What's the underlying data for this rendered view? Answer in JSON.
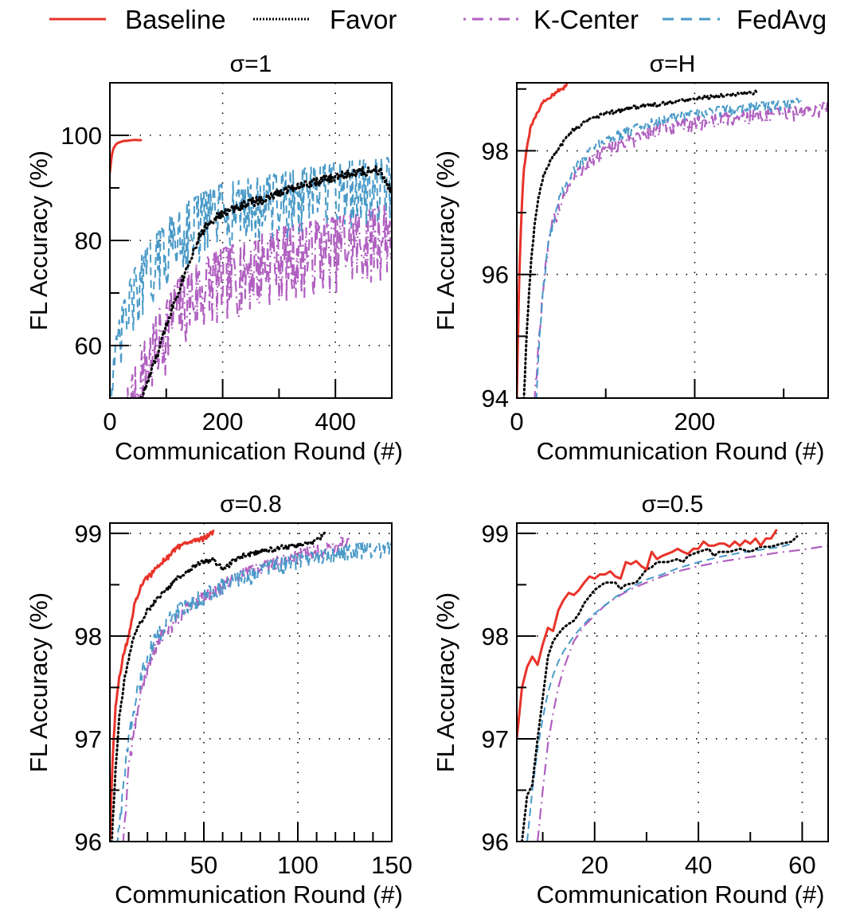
{
  "figure": {
    "legend": [
      {
        "name": "Baseline",
        "color": "#e8332a",
        "style": "solid"
      },
      {
        "name": "Favor",
        "color": "#000000",
        "style": "dotted"
      },
      {
        "name": "K-Center",
        "color": "#b060c0",
        "style": "dashdot"
      },
      {
        "name": "FedAvg",
        "color": "#4a9ac8",
        "style": "dashed"
      }
    ]
  },
  "chart_data": [
    {
      "type": "line",
      "title": "σ=1",
      "xlabel": "Communication Round (#)",
      "ylabel": "FL Accuracy (%)",
      "xlim": [
        0,
        500
      ],
      "ylim": [
        50,
        110
      ],
      "xticks": [
        0,
        200,
        400
      ],
      "xtick_labels": [
        "0",
        "200",
        "400"
      ],
      "xminor": [
        100,
        300
      ],
      "yticks": [
        60,
        80,
        100
      ],
      "ytick_labels": [
        "60",
        "80",
        "100"
      ],
      "yminor": [
        70,
        90
      ],
      "grid": true,
      "noise": {
        "Baseline": 0.1,
        "Favor": 1.5,
        "K-Center": 9,
        "FedAvg": 8
      },
      "series": [
        {
          "name": "Baseline",
          "x": [
            0,
            3,
            6,
            10,
            15,
            20,
            30,
            40,
            55
          ],
          "y": [
            93,
            96,
            97.5,
            98.2,
            98.6,
            98.8,
            99,
            99.1,
            99.1
          ]
        },
        {
          "name": "Favor",
          "x": [
            50,
            60,
            70,
            80,
            90,
            100,
            120,
            140,
            160,
            180,
            200,
            240,
            280,
            320,
            360,
            400,
            440,
            480,
            500
          ],
          "y": [
            48,
            51,
            54,
            57,
            60,
            64,
            70,
            76,
            81,
            84,
            85,
            87,
            88,
            90,
            91,
            92,
            93,
            93.5,
            89
          ]
        },
        {
          "name": "K-Center",
          "x": [
            0,
            30,
            60,
            90,
            120,
            150,
            200,
            250,
            300,
            350,
            400,
            450,
            500
          ],
          "y": [
            40,
            46,
            55,
            62,
            67,
            70,
            73,
            75,
            77,
            78,
            79,
            80,
            82
          ]
        },
        {
          "name": "FedAvg",
          "x": [
            0,
            20,
            40,
            60,
            80,
            100,
            130,
            160,
            200,
            250,
            300,
            350,
            400,
            450,
            500
          ],
          "y": [
            50,
            62,
            69,
            73,
            76,
            79,
            82,
            84,
            86,
            87,
            88,
            89,
            90,
            90.5,
            91
          ]
        }
      ]
    },
    {
      "type": "line",
      "title": "σ=H",
      "xlabel": "Communication Round (#)",
      "ylabel": "FL Accuracy (%)",
      "xlim": [
        0,
        350
      ],
      "ylim": [
        94,
        99.1
      ],
      "xticks": [
        0,
        200
      ],
      "xtick_labels": [
        "0",
        "200"
      ],
      "xminor": [
        100,
        300
      ],
      "yticks": [
        94,
        96,
        98
      ],
      "ytick_labels": [
        "94",
        "96",
        "98"
      ],
      "yminor": [
        95,
        97,
        99
      ],
      "grid": true,
      "noise": {
        "Baseline": 0.05,
        "Favor": 0.05,
        "K-Center": 0.15,
        "FedAvg": 0.1
      },
      "series": [
        {
          "name": "Baseline",
          "x": [
            0,
            2,
            4,
            6,
            8,
            12,
            16,
            22,
            30,
            40,
            50,
            56
          ],
          "y": [
            94,
            95.5,
            96.5,
            97.2,
            97.7,
            98.1,
            98.4,
            98.6,
            98.8,
            98.9,
            99.0,
            99.05
          ]
        },
        {
          "name": "Favor",
          "x": [
            8,
            12,
            16,
            20,
            25,
            30,
            40,
            50,
            60,
            80,
            100,
            130,
            160,
            200,
            240,
            270
          ],
          "y": [
            94,
            95.3,
            96.2,
            96.8,
            97.3,
            97.6,
            97.9,
            98.1,
            98.3,
            98.5,
            98.6,
            98.7,
            98.75,
            98.85,
            98.9,
            98.95
          ]
        },
        {
          "name": "K-Center",
          "x": [
            20,
            25,
            30,
            35,
            40,
            50,
            60,
            80,
            100,
            130,
            160,
            200,
            250,
            300,
            350
          ],
          "y": [
            94,
            95.0,
            95.8,
            96.4,
            96.8,
            97.2,
            97.5,
            97.8,
            98.0,
            98.2,
            98.35,
            98.45,
            98.55,
            98.6,
            98.7
          ]
        },
        {
          "name": "FedAvg",
          "x": [
            22,
            27,
            32,
            38,
            45,
            55,
            70,
            90,
            120,
            160,
            200,
            250,
            300,
            320
          ],
          "y": [
            94,
            95.3,
            96.1,
            96.7,
            97.1,
            97.5,
            97.8,
            98.1,
            98.3,
            98.5,
            98.6,
            98.7,
            98.75,
            98.8
          ]
        }
      ]
    },
    {
      "type": "line",
      "title": "σ=0.8",
      "xlabel": "Communication Round (#)",
      "ylabel": "FL Accuracy (%)",
      "xlim": [
        0,
        150
      ],
      "ylim": [
        96,
        99.1
      ],
      "xticks": [
        50,
        100,
        150
      ],
      "xtick_labels": [
        "50",
        "100",
        "150"
      ],
      "xminor": [
        10,
        20,
        30,
        40,
        60,
        70,
        80,
        90,
        110,
        120,
        130,
        140
      ],
      "yticks": [
        96,
        97,
        98,
        99
      ],
      "ytick_labels": [
        "96",
        "97",
        "98",
        "99"
      ],
      "yminor": [
        96.5,
        97.5,
        98.5
      ],
      "grid": true,
      "noise": {
        "Baseline": 0.04,
        "Favor": 0.04,
        "K-Center": 0.08,
        "FedAvg": 0.1
      },
      "series": [
        {
          "name": "Baseline",
          "x": [
            0,
            1,
            2,
            3,
            5,
            7,
            10,
            13,
            15,
            18,
            22,
            26,
            30,
            35,
            40,
            45,
            50,
            55
          ],
          "y": [
            96,
            96.6,
            97.0,
            97.3,
            97.6,
            97.8,
            98.0,
            98.3,
            98.4,
            98.55,
            98.6,
            98.7,
            98.75,
            98.85,
            98.9,
            98.92,
            98.95,
            99.02
          ]
        },
        {
          "name": "Favor",
          "x": [
            1,
            3,
            5,
            8,
            12,
            15,
            20,
            25,
            30,
            35,
            40,
            45,
            50,
            55,
            60,
            70,
            80,
            90,
            100,
            110,
            115
          ],
          "y": [
            96,
            96.7,
            97.2,
            97.6,
            97.95,
            98.1,
            98.25,
            98.35,
            98.45,
            98.55,
            98.6,
            98.68,
            98.72,
            98.75,
            98.65,
            98.78,
            98.82,
            98.86,
            98.88,
            98.93,
            99.0
          ]
        },
        {
          "name": "K-Center",
          "x": [
            7,
            10,
            13,
            17,
            22,
            27,
            35,
            45,
            55,
            70,
            85,
            100,
            115,
            128
          ],
          "y": [
            96,
            96.7,
            97.1,
            97.5,
            97.8,
            98.0,
            98.15,
            98.35,
            98.45,
            98.6,
            98.7,
            98.8,
            98.85,
            98.95
          ]
        },
        {
          "name": "FedAvg",
          "x": [
            4,
            7,
            10,
            14,
            18,
            22,
            27,
            33,
            40,
            50,
            60,
            75,
            90,
            105,
            120,
            135,
            150
          ],
          "y": [
            96,
            96.5,
            97.0,
            97.4,
            97.7,
            97.9,
            98.05,
            98.2,
            98.3,
            98.4,
            98.5,
            98.6,
            98.7,
            98.75,
            98.8,
            98.85,
            98.85
          ]
        }
      ]
    },
    {
      "type": "line",
      "title": "σ=0.5",
      "xlabel": "Communication Round (#)",
      "ylabel": "FL Accuracy (%)",
      "xlim": [
        5,
        65
      ],
      "ylim": [
        96,
        99.1
      ],
      "xticks": [
        20,
        40,
        60
      ],
      "xtick_labels": [
        "20",
        "40",
        "60"
      ],
      "xminor": [
        10,
        30,
        50
      ],
      "yticks": [
        96,
        97,
        98,
        99
      ],
      "ytick_labels": [
        "96",
        "97",
        "98",
        "99"
      ],
      "yminor": [
        96.5,
        97.5,
        98.5
      ],
      "grid": true,
      "noise": {
        "Baseline": 0.0,
        "Favor": 0.0,
        "K-Center": 0.0,
        "FedAvg": 0.0
      },
      "series": [
        {
          "name": "Baseline",
          "x": [
            5,
            6,
            7,
            8,
            9,
            10,
            11,
            12,
            13,
            14,
            15,
            16,
            17,
            18,
            19,
            20,
            21,
            22,
            23,
            24,
            25,
            26,
            27,
            28,
            29,
            30,
            31,
            32,
            33,
            34,
            35,
            36,
            37,
            38,
            39,
            40,
            41,
            42,
            43,
            44,
            45,
            46,
            47,
            48,
            49,
            50,
            51,
            52,
            53,
            54,
            55
          ],
          "y": [
            97.0,
            97.5,
            97.7,
            97.8,
            97.72,
            97.92,
            98.08,
            98.05,
            98.25,
            98.35,
            98.42,
            98.4,
            98.45,
            98.52,
            98.58,
            98.56,
            98.6,
            98.6,
            98.63,
            98.58,
            98.56,
            98.72,
            98.7,
            98.73,
            98.68,
            98.65,
            98.82,
            98.75,
            98.78,
            98.8,
            98.82,
            98.85,
            98.82,
            98.8,
            98.85,
            98.85,
            98.92,
            98.88,
            98.88,
            98.9,
            98.9,
            98.87,
            98.92,
            98.88,
            98.93,
            98.9,
            98.95,
            98.88,
            98.95,
            98.95,
            99.03
          ]
        },
        {
          "name": "Favor",
          "x": [
            6,
            7,
            8,
            9,
            10,
            11,
            12,
            13,
            14,
            15,
            16,
            17,
            18,
            20,
            22,
            24,
            25,
            26,
            28,
            30,
            31,
            32,
            34,
            36,
            37,
            38,
            40,
            42,
            43,
            44,
            46,
            48,
            50,
            52,
            54,
            56,
            58,
            59
          ],
          "y": [
            96.0,
            96.45,
            96.55,
            97.0,
            97.4,
            97.8,
            97.95,
            98.02,
            98.08,
            98.12,
            98.15,
            98.22,
            98.32,
            98.45,
            98.52,
            98.52,
            98.46,
            98.5,
            98.52,
            98.65,
            98.67,
            98.72,
            98.72,
            98.75,
            98.72,
            98.78,
            98.82,
            98.85,
            98.78,
            98.82,
            98.82,
            98.85,
            98.82,
            98.87,
            98.87,
            98.9,
            98.92,
            98.97
          ]
        },
        {
          "name": "FedAvg",
          "x": [
            7,
            8,
            9,
            10,
            11,
            12,
            13,
            14,
            16,
            18,
            20,
            22,
            24,
            26,
            28,
            30,
            33,
            36,
            40,
            44,
            48,
            52,
            56,
            58
          ],
          "y": [
            96.0,
            96.5,
            96.9,
            97.2,
            97.45,
            97.62,
            97.75,
            97.85,
            98.0,
            98.12,
            98.22,
            98.3,
            98.38,
            98.44,
            98.5,
            98.55,
            98.6,
            98.66,
            98.72,
            98.77,
            98.81,
            98.84,
            98.87,
            98.9
          ]
        },
        {
          "name": "K-Center",
          "x": [
            9,
            10,
            11,
            12,
            13,
            14,
            15,
            16,
            18,
            20,
            22,
            24,
            26,
            28,
            30,
            33,
            36,
            40,
            45,
            50,
            55,
            60,
            65
          ],
          "y": [
            96.0,
            96.5,
            96.95,
            97.25,
            97.5,
            97.68,
            97.82,
            97.95,
            98.1,
            98.2,
            98.3,
            98.37,
            98.43,
            98.48,
            98.52,
            98.58,
            98.63,
            98.68,
            98.73,
            98.77,
            98.81,
            98.84,
            98.88
          ]
        }
      ]
    }
  ]
}
